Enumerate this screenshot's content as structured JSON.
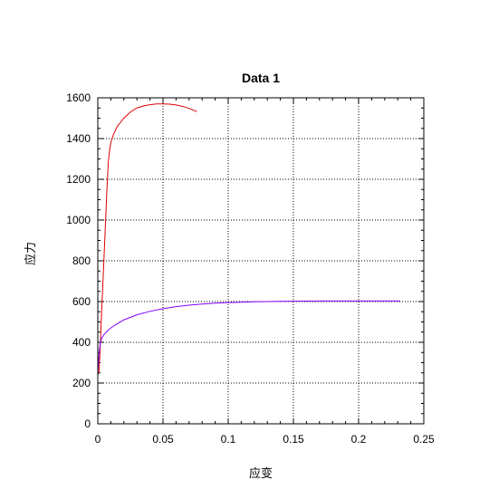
{
  "chart_data": {
    "type": "line",
    "title": "Data 1",
    "xlabel": "应变",
    "ylabel": "应力",
    "xlim": [
      0,
      0.25
    ],
    "ylim": [
      0,
      1600
    ],
    "x_ticks": [
      "0",
      "0.05",
      "0.1",
      "0.15",
      "0.2",
      "0.25"
    ],
    "y_ticks": [
      "0",
      "200",
      "400",
      "600",
      "800",
      "1000",
      "1200",
      "1400",
      "1600"
    ],
    "grid": true,
    "grid_style": "dotted",
    "colors": {
      "series_1": "#dd0000",
      "series_2": "#8000ff",
      "axes": "#000000"
    },
    "series": [
      {
        "color": "#dd0000",
        "points": [
          [
            0.0,
            240
          ],
          [
            0.001,
            260
          ],
          [
            0.002,
            400
          ],
          [
            0.003,
            560
          ],
          [
            0.004,
            700
          ],
          [
            0.005,
            850
          ],
          [
            0.006,
            1000
          ],
          [
            0.007,
            1150
          ],
          [
            0.008,
            1280
          ],
          [
            0.009,
            1340
          ],
          [
            0.01,
            1380
          ],
          [
            0.012,
            1420
          ],
          [
            0.015,
            1460
          ],
          [
            0.02,
            1500
          ],
          [
            0.025,
            1530
          ],
          [
            0.03,
            1550
          ],
          [
            0.035,
            1560
          ],
          [
            0.04,
            1566
          ],
          [
            0.045,
            1570
          ],
          [
            0.05,
            1570
          ],
          [
            0.055,
            1569
          ],
          [
            0.06,
            1565
          ],
          [
            0.065,
            1558
          ],
          [
            0.07,
            1548
          ],
          [
            0.076,
            1532
          ]
        ]
      },
      {
        "color": "#8000ff",
        "points": [
          [
            0.0,
            245
          ],
          [
            0.0005,
            300
          ],
          [
            0.001,
            350
          ],
          [
            0.002,
            400
          ],
          [
            0.003,
            420
          ],
          [
            0.005,
            440
          ],
          [
            0.008,
            460
          ],
          [
            0.012,
            480
          ],
          [
            0.02,
            510
          ],
          [
            0.03,
            535
          ],
          [
            0.04,
            552
          ],
          [
            0.05,
            565
          ],
          [
            0.06,
            575
          ],
          [
            0.07,
            582
          ],
          [
            0.08,
            588
          ],
          [
            0.09,
            592
          ],
          [
            0.1,
            595
          ],
          [
            0.12,
            599
          ],
          [
            0.14,
            601
          ],
          [
            0.16,
            602
          ],
          [
            0.18,
            603
          ],
          [
            0.2,
            603
          ],
          [
            0.22,
            603
          ],
          [
            0.232,
            603
          ]
        ]
      }
    ]
  }
}
